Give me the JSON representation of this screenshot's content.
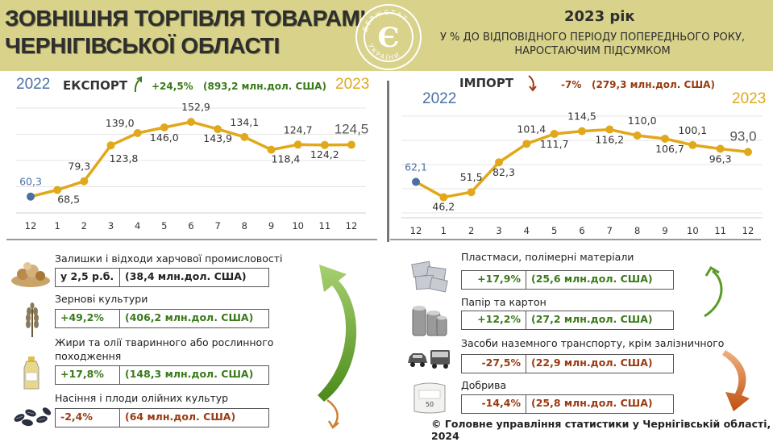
{
  "header": {
    "title_line1": "ЗОВНІШНЯ ТОРГІВЛЯ ТОВАРАМИ",
    "title_line2": "ЧЕРНІГІВСЬКОЇ ОБЛАСТІ",
    "year": "2023 рік",
    "subtitle_line1": "У % ДО ВІДПОВІДНОГО ПЕРІОДУ ПОПЕРЕДНЬОГО РОКУ,",
    "subtitle_line2": "НАРОСТАЮЧИМ ПІДСУМКОМ",
    "logo_text": "ДЕРЖСТАТ УКРАЇНИ",
    "logo_symbol": "Є"
  },
  "chart_data": [
    {
      "type": "line",
      "title": "ЕКСПОРТ",
      "year_start": "2022",
      "year_end": "2023",
      "change": "+24,5%",
      "amount": "(893,2 млн.дол. США)",
      "x": [
        "12",
        "1",
        "2",
        "3",
        "4",
        "5",
        "6",
        "7",
        "8",
        "9",
        "10",
        "11",
        "12"
      ],
      "values": [
        60.3,
        68.5,
        79.3,
        123.8,
        139.0,
        146.0,
        152.9,
        143.9,
        134.1,
        118.4,
        124.7,
        124.2,
        124.5
      ],
      "labels": [
        "60,3",
        "68,5",
        "79,3",
        "123,8",
        "139,0",
        "146,0",
        "152,9",
        "143,9",
        "134,1",
        "118,4",
        "124,7",
        "124,2",
        "124,5"
      ],
      "ylim": [
        40,
        170
      ],
      "grid": true,
      "colors": {
        "line": "#e0a81a",
        "first_point": "#4a6fa5"
      }
    },
    {
      "type": "line",
      "title": "ІМПОРТ",
      "year_start": "2022",
      "year_end": "2023",
      "change": "-7%",
      "amount": "(279,3 млн.дол. США)",
      "x": [
        "12",
        "1",
        "2",
        "3",
        "4",
        "5",
        "6",
        "7",
        "8",
        "9",
        "10",
        "11",
        "12"
      ],
      "values": [
        62.1,
        46.2,
        51.5,
        82.3,
        101.4,
        111.7,
        114.5,
        116.2,
        110.0,
        106.7,
        100.1,
        96.3,
        93.0
      ],
      "labels": [
        "62,1",
        "46,2",
        "51,5",
        "82,3",
        "101,4",
        "111,7",
        "114,5",
        "116,2",
        "110,0",
        "106,7",
        "100,1",
        "96,3",
        "93,0"
      ],
      "ylim": [
        30,
        130
      ],
      "grid": true,
      "colors": {
        "line": "#e0a81a",
        "first_point": "#4a6fa5"
      }
    }
  ],
  "export_products": [
    {
      "name": "Залишки і відходи харчової промисловості",
      "pct": "у 2,5 р.б.",
      "amount": "(38,4 млн.дол. США)",
      "icon": "food-waste-icon"
    },
    {
      "name": "Зернові культури",
      "pct": "+49,2%",
      "amount": "(406,2 млн.дол. США)",
      "icon": "wheat-icon"
    },
    {
      "name": "Жири та олії тваринного або рослинного походження",
      "name_line1": "Жири та олії тваринного або рослинного",
      "name_line2": "походження",
      "pct": "+17,8%",
      "amount": "(148,3 млн.дол. США)",
      "icon": "oil-bottle-icon"
    },
    {
      "name": "Насіння і плоди олійних культур",
      "pct": "-2,4%",
      "amount": "(64 млн.дол. США)",
      "icon": "seeds-icon"
    }
  ],
  "import_products": [
    {
      "name": "Пластмаси, полімерні матеріали",
      "pct": "+17,9%",
      "amount": "(25,6 млн.дол. США)",
      "icon": "plastic-sheets-icon"
    },
    {
      "name": "Папір та картон",
      "pct": "+12,2%",
      "amount": "(27,2 млн.дол. США)",
      "icon": "paper-rolls-icon"
    },
    {
      "name": "Засоби наземного транспорту, крім залізничного",
      "pct": "-27,5%",
      "amount": "(22,9 млн.дол. США)",
      "icon": "car-bus-icon"
    },
    {
      "name": "Добрива",
      "pct": "-14,4%",
      "amount": "(25,8 млн.дол. США)",
      "icon": "fertilizer-bag-icon",
      "bag_text": "50"
    }
  ],
  "footer": "© Головне управління статистики у Чернігівській області, 2024",
  "colors": {
    "header_bg": "#d8d28a",
    "green": "#3a7a1a",
    "brown": "#9a3a10",
    "gold": "#e0a81a",
    "blue": "#4a6fa5"
  }
}
